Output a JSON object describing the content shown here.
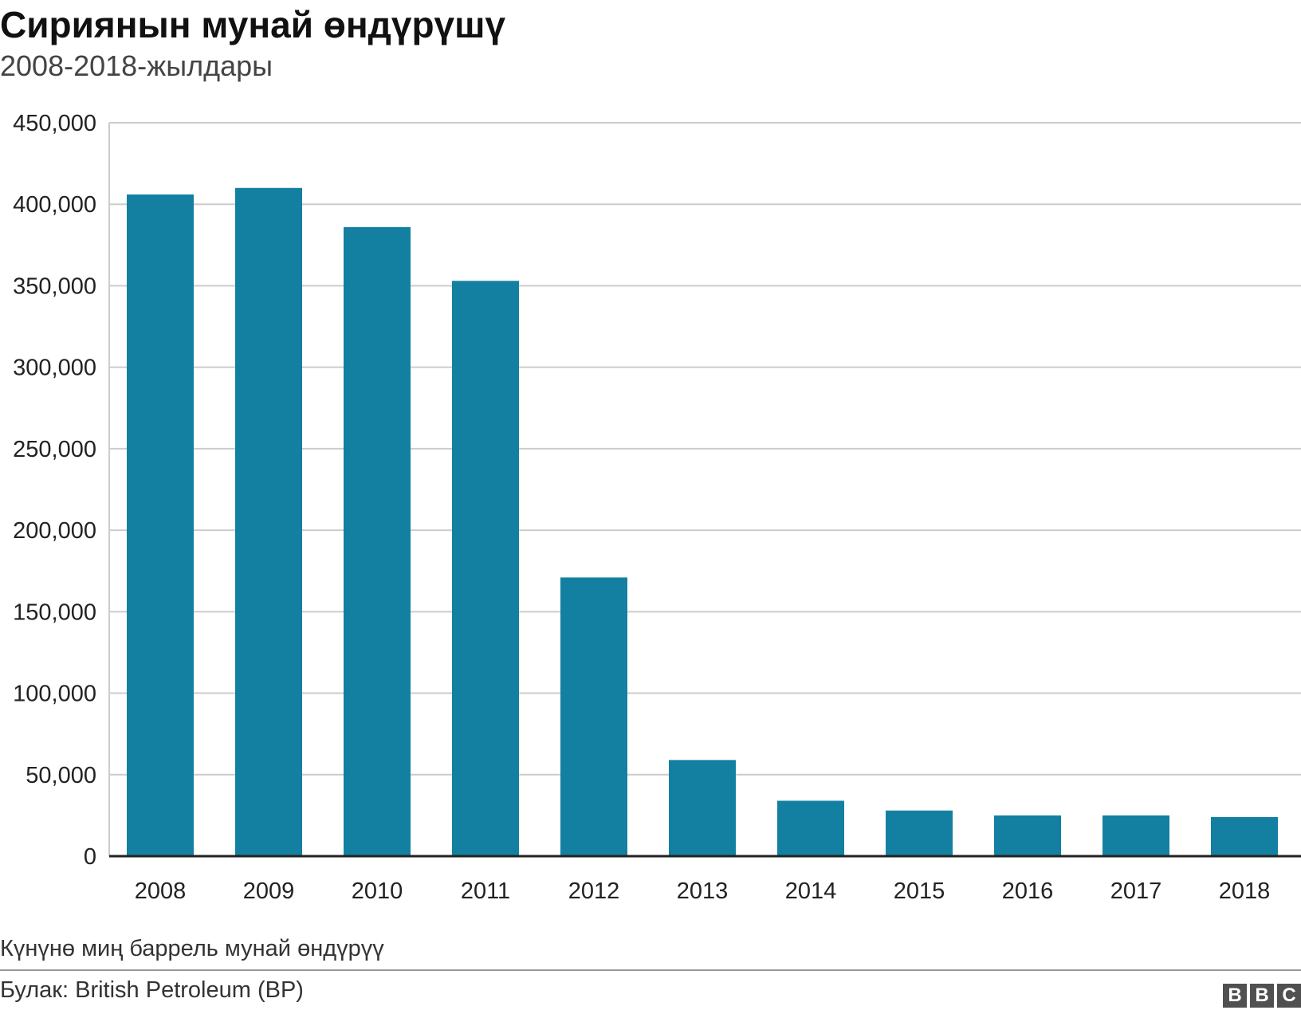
{
  "chart_data": {
    "type": "bar",
    "title": "Сириянын мунай өндүрүшү",
    "subtitle": "2008-2018-жылдары",
    "categories": [
      "2008",
      "2009",
      "2010",
      "2011",
      "2012",
      "2013",
      "2014",
      "2015",
      "2016",
      "2017",
      "2018"
    ],
    "values": [
      406000,
      410000,
      386000,
      353000,
      171000,
      59000,
      34000,
      28000,
      25000,
      25000,
      24000
    ],
    "ylim": [
      0,
      450000
    ],
    "yticks": [
      0,
      50000,
      100000,
      150000,
      200000,
      250000,
      300000,
      350000,
      400000,
      450000
    ],
    "ytick_labels": [
      "0",
      "50,000",
      "100,000",
      "150,000",
      "200,000",
      "250,000",
      "300,000",
      "350,000",
      "400,000",
      "450,000"
    ],
    "grid": true,
    "bar_color": "#1380a1",
    "note": "Күнүнө миң баррель мунай өндүрүү",
    "source": "Булак: British Petroleum (BP)"
  },
  "logo": {
    "letters": [
      "B",
      "B",
      "C"
    ]
  }
}
